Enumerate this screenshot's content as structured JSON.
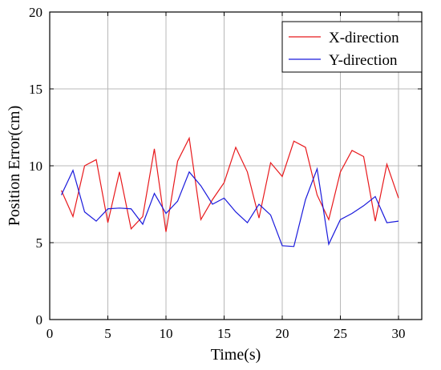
{
  "chart_data": {
    "type": "line",
    "title": "",
    "xlabel": "Time(s)",
    "ylabel": "Position Error(cm)",
    "xlim": [
      0,
      32
    ],
    "ylim": [
      0,
      20
    ],
    "xticks": [
      0,
      5,
      10,
      15,
      20,
      25,
      30
    ],
    "yticks": [
      0,
      5,
      10,
      15,
      20
    ],
    "grid": true,
    "legend": "top-right",
    "x": [
      1,
      2,
      3,
      4,
      5,
      6,
      7,
      8,
      9,
      10,
      11,
      12,
      13,
      14,
      15,
      16,
      17,
      18,
      19,
      20,
      21,
      22,
      23,
      24,
      25,
      26,
      27,
      28,
      29,
      30
    ],
    "series": [
      {
        "name": "X-direction",
        "color": "#e8191c",
        "values": [
          8.4,
          6.7,
          10.0,
          10.4,
          6.3,
          9.6,
          5.9,
          6.7,
          11.1,
          5.7,
          10.3,
          11.8,
          6.5,
          7.8,
          8.9,
          11.2,
          9.6,
          6.6,
          10.2,
          9.3,
          11.6,
          11.2,
          8.1,
          6.5,
          9.6,
          11.0,
          10.6,
          6.4,
          10.1,
          7.9
        ]
      },
      {
        "name": "Y-direction",
        "color": "#1a1adc",
        "values": [
          8.1,
          9.7,
          7.0,
          6.4,
          7.2,
          7.25,
          7.2,
          6.2,
          8.2,
          6.9,
          7.7,
          9.6,
          8.7,
          7.5,
          7.9,
          7.0,
          6.3,
          7.5,
          6.8,
          4.8,
          4.75,
          7.8,
          9.8,
          4.9,
          6.5,
          6.9,
          7.4,
          8.0,
          6.3,
          6.4
        ]
      }
    ]
  }
}
